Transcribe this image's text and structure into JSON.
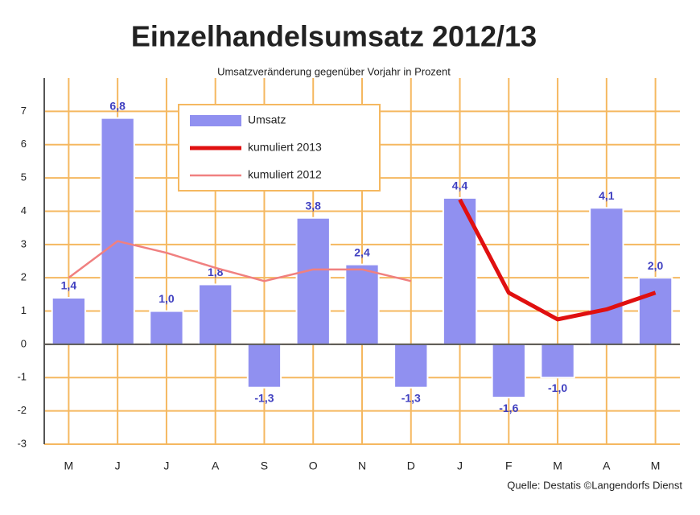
{
  "chart_data": {
    "type": "bar",
    "title": "Einzelhandelsumsatz 2012/13",
    "subtitle": "Umsatzveränderung gegenüber Vorjahr in Prozent",
    "source": "Quelle: Destatis ©Langendorfs Dienst",
    "categories": [
      "M",
      "J",
      "J",
      "A",
      "S",
      "O",
      "N",
      "D",
      "J",
      "F",
      "M",
      "A",
      "M"
    ],
    "series": [
      {
        "name": "Umsatz",
        "type": "bar",
        "color": "#9090f0",
        "values": [
          1.4,
          6.8,
          1.0,
          1.8,
          -1.3,
          3.8,
          2.4,
          -1.3,
          4.4,
          -1.6,
          -1.0,
          4.1,
          2.0
        ],
        "value_labels": [
          "1,4",
          "6,8",
          "1,0",
          "1,8",
          "-1,3",
          "3,8",
          "2,4",
          "-1,3",
          "4,4",
          "-1,6",
          "-1,0",
          "4,1",
          "2,0"
        ]
      },
      {
        "name": "kumuliert 2013",
        "type": "line",
        "color": "#e01010",
        "width": 5,
        "values": [
          null,
          null,
          null,
          null,
          null,
          null,
          null,
          null,
          4.35,
          1.55,
          0.75,
          1.05,
          1.55
        ]
      },
      {
        "name": "kumuliert 2012",
        "type": "line",
        "color": "#f08080",
        "width": 2.5,
        "values": [
          2.0,
          3.1,
          2.75,
          2.3,
          1.9,
          2.25,
          2.25,
          1.9,
          null,
          null,
          null,
          null,
          null
        ]
      }
    ],
    "ylim": [
      -3,
      8
    ],
    "yticks": [
      -3,
      -2,
      -1,
      0,
      1,
      2,
      3,
      4,
      5,
      6,
      7
    ],
    "grid": true,
    "grid_color": "#f5b860",
    "legend": "upper-left"
  }
}
